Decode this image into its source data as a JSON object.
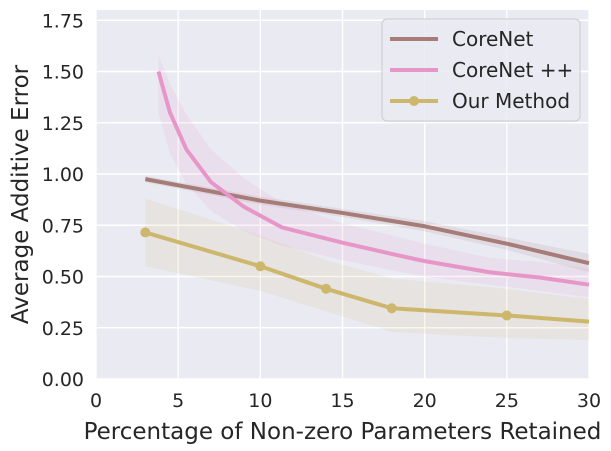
{
  "chart_data": {
    "type": "line",
    "title": "",
    "xlabel": "Percentage of Non-zero Parameters Retained",
    "ylabel": "Average Additive Error",
    "xlim": [
      0,
      30
    ],
    "ylim": [
      0,
      1.8
    ],
    "xticks": [
      0,
      5,
      10,
      15,
      20,
      25,
      30
    ],
    "yticks": [
      0.0,
      0.25,
      0.5,
      0.75,
      1.0,
      1.25,
      1.5,
      1.75
    ],
    "xtick_labels": [
      "0",
      "5",
      "10",
      "15",
      "20",
      "25",
      "30"
    ],
    "ytick_labels": [
      "0.00",
      "0.25",
      "0.50",
      "0.75",
      "1.00",
      "1.25",
      "1.50",
      "1.75"
    ],
    "grid": true,
    "legend_position": "top-right",
    "series": [
      {
        "name": "CoreNet",
        "color": "#a57c78",
        "marker": "none",
        "x": [
          3.0,
          10.0,
          15.0,
          20.0,
          25.0,
          30.0
        ],
        "y": [
          0.975,
          0.87,
          0.81,
          0.745,
          0.66,
          0.565
        ],
        "lower": [
          0.96,
          0.85,
          0.79,
          0.72,
          0.63,
          0.52
        ],
        "upper": [
          0.99,
          0.89,
          0.83,
          0.77,
          0.69,
          0.61
        ]
      },
      {
        "name": "CoreNet ++",
        "color": "#e796c8",
        "marker": "none",
        "x": [
          3.8,
          4.5,
          5.5,
          7.0,
          9.0,
          11.3,
          15.0,
          18.0,
          20.0,
          24.0,
          27.0,
          30.0
        ],
        "y": [
          1.5,
          1.3,
          1.12,
          0.96,
          0.84,
          0.74,
          0.665,
          0.61,
          0.575,
          0.52,
          0.495,
          0.46
        ],
        "lower": [
          1.3,
          1.1,
          0.95,
          0.82,
          0.72,
          0.65,
          0.58,
          0.53,
          0.5,
          0.46,
          0.43,
          0.4
        ],
        "upper": [
          1.58,
          1.44,
          1.29,
          1.12,
          0.98,
          0.86,
          0.76,
          0.7,
          0.66,
          0.59,
          0.57,
          0.54
        ]
      },
      {
        "name": "Our Method",
        "color": "#cdb76c",
        "marker": "circle",
        "x": [
          3.0,
          10.0,
          14.0,
          18.0,
          25.0,
          30.0
        ],
        "y": [
          0.715,
          0.55,
          0.44,
          0.345,
          0.31,
          0.28
        ],
        "lower": [
          0.55,
          0.43,
          0.33,
          0.23,
          0.2,
          0.19
        ],
        "upper": [
          0.88,
          0.7,
          0.58,
          0.49,
          0.44,
          0.39
        ]
      }
    ]
  }
}
